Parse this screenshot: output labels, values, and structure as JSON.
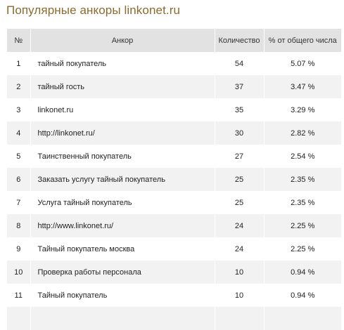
{
  "page": {
    "title": "Популярные анкоры linkonet.ru"
  },
  "table": {
    "headers": {
      "num": "№",
      "anchor": "Анкор",
      "count": "Количество",
      "percent": "% от общего числа"
    },
    "rows": [
      {
        "num": "1",
        "anchor": "тайный покупатель",
        "count": "54",
        "percent": "5.07 %"
      },
      {
        "num": "2",
        "anchor": "тайный гость",
        "count": "37",
        "percent": "3.47 %"
      },
      {
        "num": "3",
        "anchor": "linkonet.ru",
        "count": "35",
        "percent": "3.29 %"
      },
      {
        "num": "4",
        "anchor": "http://linkonet.ru/",
        "count": "30",
        "percent": "2.82 %"
      },
      {
        "num": "5",
        "anchor": "Таинственный покупатель",
        "count": "27",
        "percent": "2.54 %"
      },
      {
        "num": "6",
        "anchor": "Заказать услугу тайный покупатель",
        "count": "25",
        "percent": "2.35 %"
      },
      {
        "num": "7",
        "anchor": "Услуга тайный покупатель",
        "count": "25",
        "percent": "2.35 %"
      },
      {
        "num": "8",
        "anchor": "http://www.linkonet.ru/",
        "count": "24",
        "percent": "2.25 %"
      },
      {
        "num": "9",
        "anchor": "Тайный покупатель москва",
        "count": "24",
        "percent": "2.25 %"
      },
      {
        "num": "10",
        "anchor": "Проверка работы персонала",
        "count": "10",
        "percent": "0.94 %"
      },
      {
        "num": "11",
        "anchor": "Тайный покупатель",
        "count": "10",
        "percent": "0.94 %"
      },
      {
        "num": "",
        "anchor": "",
        "count": "",
        "percent": ""
      }
    ]
  }
}
